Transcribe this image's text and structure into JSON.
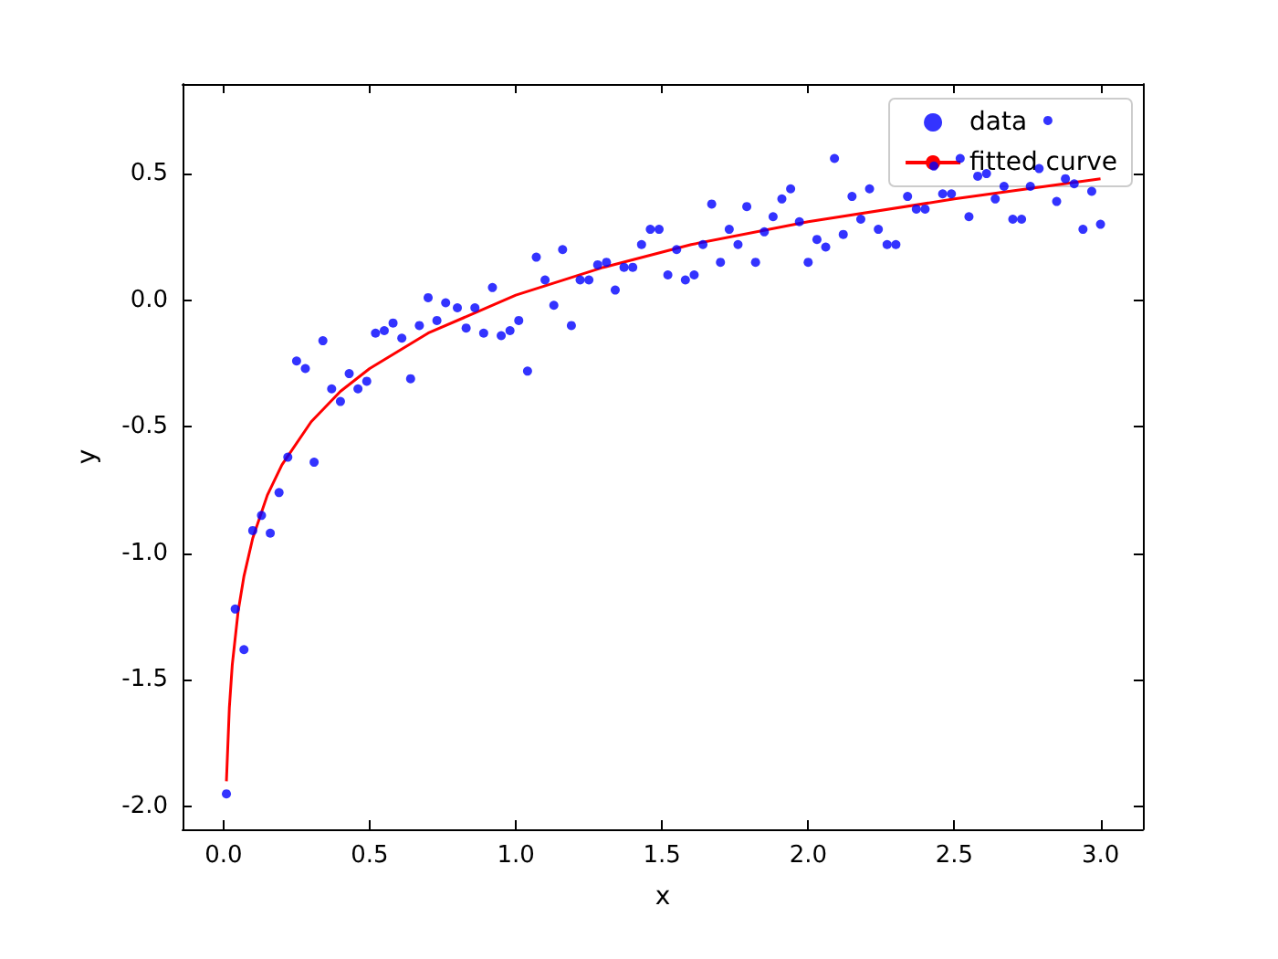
{
  "chart_data": {
    "type": "scatter",
    "xlabel": "x",
    "ylabel": "y",
    "xlim": [
      -0.14,
      3.145
    ],
    "ylim": [
      -2.09,
      0.854
    ],
    "xticks": [
      {
        "value": 0,
        "label": "0.0"
      },
      {
        "value": 0.5,
        "label": "0.5"
      },
      {
        "value": 1,
        "label": "1.0"
      },
      {
        "value": 1.5,
        "label": "1.5"
      },
      {
        "value": 2,
        "label": "2.0"
      },
      {
        "value": 2.5,
        "label": "2.5"
      },
      {
        "value": 3,
        "label": "3.0"
      }
    ],
    "yticks": [
      {
        "value": -2,
        "label": "-2.0"
      },
      {
        "value": -1.5,
        "label": "-1.5"
      },
      {
        "value": -1,
        "label": "-1.0"
      },
      {
        "value": -0.5,
        "label": "-0.5"
      },
      {
        "value": 0,
        "label": "0.0"
      },
      {
        "value": 0.5,
        "label": "0.5"
      }
    ],
    "grid": false,
    "legend": "top right",
    "marker": "circle",
    "series": [
      {
        "name": "data",
        "color": "#0000ff",
        "x": [
          0.01,
          0.04,
          0.07,
          0.1,
          0.13,
          0.16,
          0.19,
          0.22,
          0.25,
          0.28,
          0.31,
          0.34,
          0.37,
          0.4,
          0.43,
          0.46,
          0.49,
          0.52,
          0.55,
          0.58,
          0.61,
          0.64,
          0.67,
          0.7,
          0.73,
          0.76,
          0.8,
          0.83,
          0.86,
          0.89,
          0.92,
          0.95,
          0.98,
          1.01,
          1.04,
          1.07,
          1.1,
          1.13,
          1.16,
          1.19,
          1.22,
          1.25,
          1.28,
          1.31,
          1.34,
          1.37,
          1.4,
          1.43,
          1.46,
          1.49,
          1.52,
          1.55,
          1.58,
          1.61,
          1.64,
          1.67,
          1.7,
          1.73,
          1.76,
          1.79,
          1.82,
          1.85,
          1.88,
          1.91,
          1.94,
          1.97,
          2.0,
          2.03,
          2.06,
          2.09,
          2.12,
          2.15,
          2.18,
          2.21,
          2.24,
          2.27,
          2.3,
          2.34,
          2.37,
          2.4,
          2.43,
          2.46,
          2.49,
          2.52,
          2.55,
          2.58,
          2.61,
          2.64,
          2.67,
          2.7,
          2.73,
          2.76,
          2.79,
          2.82,
          2.85,
          2.88,
          2.91,
          2.94,
          2.97,
          3.0
        ],
        "values": [
          -1.95,
          -1.22,
          -1.38,
          -0.91,
          -0.85,
          -0.92,
          -0.76,
          -0.62,
          -0.24,
          -0.27,
          -0.64,
          -0.16,
          -0.35,
          -0.4,
          -0.29,
          -0.35,
          -0.32,
          -0.13,
          -0.12,
          -0.09,
          -0.15,
          -0.31,
          -0.1,
          0.01,
          -0.08,
          -0.01,
          -0.03,
          -0.11,
          -0.03,
          -0.13,
          0.05,
          -0.14,
          -0.12,
          -0.08,
          -0.28,
          0.17,
          0.08,
          -0.02,
          0.2,
          -0.1,
          0.08,
          0.08,
          0.14,
          0.15,
          0.04,
          0.13,
          0.13,
          0.22,
          0.28,
          0.28,
          0.1,
          0.2,
          0.08,
          0.1,
          0.22,
          0.38,
          0.15,
          0.28,
          0.22,
          0.37,
          0.15,
          0.27,
          0.33,
          0.4,
          0.44,
          0.31,
          0.15,
          0.24,
          0.21,
          0.56,
          0.26,
          0.41,
          0.32,
          0.44,
          0.28,
          0.22,
          0.22,
          0.41,
          0.36,
          0.36,
          0.53,
          0.42,
          0.42,
          0.56,
          0.33,
          0.49,
          0.5,
          0.4,
          0.45,
          0.32,
          0.32,
          0.45,
          0.52,
          0.71,
          0.39,
          0.48,
          0.46,
          0.28,
          0.43,
          0.3
        ]
      },
      {
        "name": "fitted curve",
        "type": "line",
        "color": "#ff0000",
        "marker": "none",
        "line_style": "solid",
        "x": [
          0.01,
          0.02,
          0.03,
          0.05,
          0.07,
          0.1,
          0.15,
          0.2,
          0.3,
          0.4,
          0.5,
          0.7,
          1.0,
          1.3,
          1.6,
          2.0,
          2.5,
          3.0
        ],
        "values": [
          -1.9,
          -1.61,
          -1.44,
          -1.23,
          -1.09,
          -0.94,
          -0.77,
          -0.65,
          -0.48,
          -0.36,
          -0.27,
          -0.13,
          0.02,
          0.13,
          0.22,
          0.31,
          0.4,
          0.48
        ]
      }
    ]
  }
}
